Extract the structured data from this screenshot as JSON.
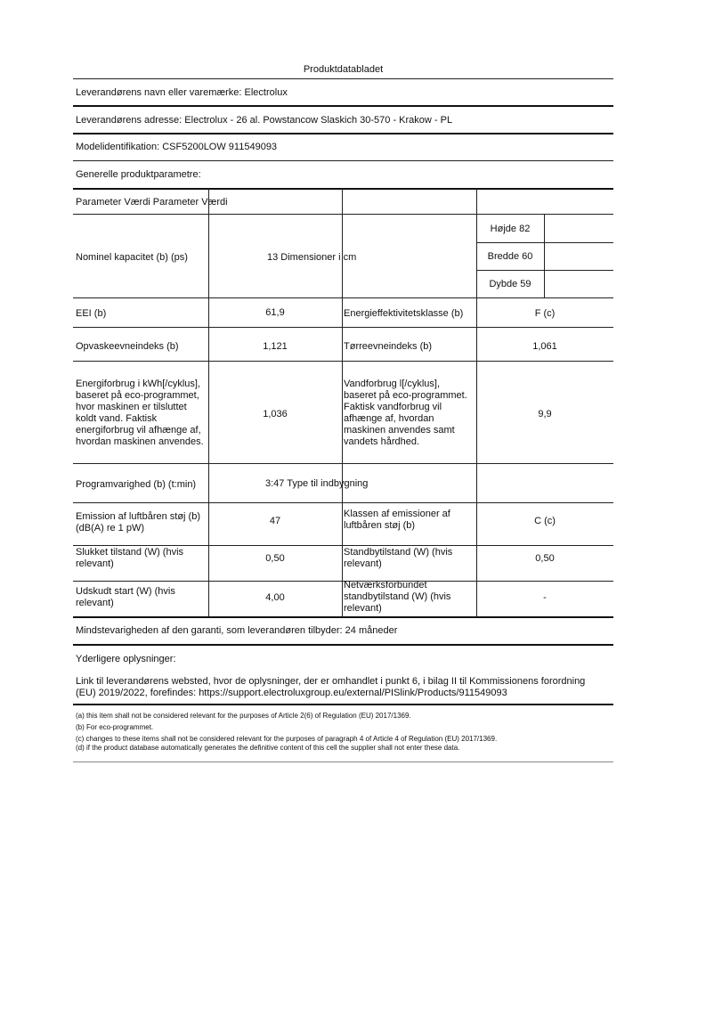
{
  "title": "Produktdatabladet",
  "supplier": "Leverandørens navn eller varemærke: Electrolux",
  "address": "Leverandørens adresse: Electrolux - 26 al. Powstancow Slaskich 30-570 - Krakow - PL",
  "model": "Modelidentifikation: CSF5200LOW 911549093",
  "general": "Generelle produktparametre:",
  "table": {
    "header": "Parameter Værdi Parameter Værdi",
    "capacity_label": "Nominel kapacitet (b) (ps)",
    "capacity_value": "13 Dimensioner i cm",
    "height": "Højde 82",
    "width": "Bredde 60",
    "depth": "Dybde 59",
    "eei_label": "EEI (b)",
    "eei_value": "61,9",
    "eclass_label": "Energieffektivitetsklasse (b)",
    "eclass_value": "F (c)",
    "wash_label": "Opvaskeevneindeks (b)",
    "wash_value": "1,121",
    "dry_label": "Tørreevneindeks (b)",
    "dry_value": "1,061",
    "energy_label": [
      "Energiforbrug i kWh[/cyklus],",
      "baseret på eco-programmet,",
      "hvor maskinen er tilsluttet",
      "koldt vand. Faktisk",
      "energiforbrug vil afhænge af,",
      "hvordan maskinen anvendes."
    ],
    "energy_value": "1,036",
    "water_label": [
      "Vandforbrug l[/cyklus],",
      "baseret på eco-programmet.",
      "Faktisk vandforbrug vil",
      "afhænge af, hvordan",
      "maskinen anvendes samt",
      "vandets hårdhed."
    ],
    "water_value": "9,9",
    "duration_label": "Programvarighed (b) (t:min)",
    "duration_value": "3:47 Type til indbygning",
    "noise_label": [
      "Emission af luftbåren støj (b)",
      "(dB(A) re 1 pW)"
    ],
    "noise_value": "47",
    "noise_class_label": [
      "Klassen af emissioner af",
      "luftbåren støj (b)"
    ],
    "noise_class_value": "C (c)",
    "off_label": [
      "Slukket tilstand (W) (hvis",
      "relevant)"
    ],
    "off_value": "0,50",
    "standby_label": [
      "Standbytilstand (W) (hvis",
      "relevant)"
    ],
    "standby_value": "0,50",
    "delay_label": [
      "Udskudt start (W) (hvis",
      "relevant)"
    ],
    "delay_value": "4,00",
    "network_label": [
      "Netværksforbundet",
      "standbytilstand (W) (hvis",
      "relevant)"
    ],
    "network_value": "-"
  },
  "warranty": "Mindstevarigheden af den garanti, som leverandøren tilbyder: 24 måneder",
  "additional": "Yderligere oplysninger:",
  "link": [
    "Link til leverandørens websted, hvor de oplysninger, der er omhandlet i punkt 6, i bilag II til Kommissionens forordning",
    "(EU) 2019/2022, forefindes: https://support.electroluxgroup.eu/external/PISlink/Products/911549093"
  ],
  "footnotes": [
    "(a) this item shall not be considered relevant for the purposes of Article 2(6) of Regulation (EU) 2017/1369.",
    "(b) For eco-programmet.",
    "(c) changes to these items shall not be considered relevant for the purposes of paragraph 4 of Article 4 of Regulation (EU) 2017/1369.",
    "(d) if the product database automatically generates the definitive content of this cell the supplier shall not enter these data."
  ]
}
